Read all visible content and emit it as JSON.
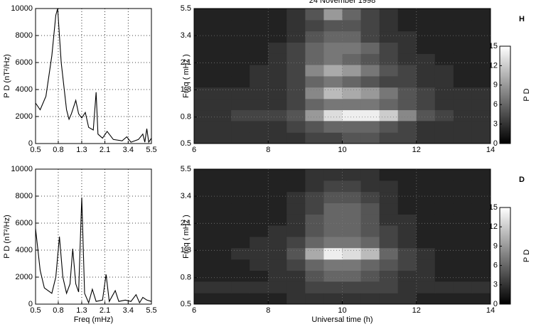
{
  "chart_data": [
    {
      "type": "line",
      "ylabel": "P D (nT²/Hz)",
      "xlog": true,
      "grid": true,
      "color": "#000000",
      "x": [
        0.5,
        0.55,
        0.62,
        0.7,
        0.76,
        0.79,
        0.85,
        0.95,
        1.0,
        1.05,
        1.15,
        1.22,
        1.3,
        1.4,
        1.5,
        1.65,
        1.75,
        1.82,
        2.0,
        2.2,
        2.5,
        3.0,
        3.3,
        3.6,
        4.2,
        4.6,
        4.8,
        5.0,
        5.2,
        5.5
      ],
      "values": [
        3000,
        2500,
        3500,
        6500,
        9500,
        10000,
        6000,
        2500,
        1800,
        2200,
        3200,
        2200,
        1900,
        2300,
        1200,
        1000,
        3800,
        700,
        400,
        900,
        300,
        200,
        500,
        100,
        300,
        700,
        100,
        1100,
        100,
        400
      ],
      "xlim": [
        0.5,
        5.5
      ],
      "xticks": [
        0.5,
        0.8,
        1.3,
        2.1,
        3.4,
        5.5
      ],
      "ylim": [
        0,
        10000
      ],
      "yticks": [
        0,
        2000,
        4000,
        6000,
        8000,
        10000
      ]
    },
    {
      "type": "heatmap",
      "title": "24 November 1998",
      "ylabel": "Freq ( mHz )",
      "panel_label": "H",
      "ylog": true,
      "grid": true,
      "colormap": "gray",
      "xbins": [
        6,
        6.5,
        7,
        7.5,
        8,
        8.5,
        9,
        9.5,
        10,
        10.5,
        11,
        11.5,
        12,
        12.5,
        13,
        13.5,
        14
      ],
      "ybins": [
        0.5,
        0.61,
        0.75,
        0.91,
        1.11,
        1.36,
        1.66,
        2.03,
        2.47,
        3.02,
        3.69,
        4.5,
        5.5
      ],
      "values": [
        [
          3,
          3,
          3,
          3,
          3,
          3,
          4,
          4,
          5,
          5,
          4,
          4,
          3,
          3,
          3,
          3
        ],
        [
          3,
          3,
          3,
          3,
          3,
          4,
          5,
          6,
          6,
          6,
          5,
          4,
          3,
          3,
          3,
          3
        ],
        [
          3,
          3,
          4,
          4,
          4,
          5,
          9,
          13,
          14,
          14,
          12,
          8,
          5,
          4,
          3,
          3
        ],
        [
          3,
          3,
          3,
          3,
          3,
          4,
          6,
          7,
          7,
          7,
          6,
          5,
          4,
          3,
          3,
          3
        ],
        [
          3,
          3,
          3,
          3,
          3,
          4,
          8,
          11,
          10,
          9,
          7,
          5,
          4,
          3,
          3,
          3
        ],
        [
          2,
          2,
          2,
          3,
          3,
          4,
          6,
          7,
          6,
          5,
          4,
          4,
          3,
          3,
          2,
          2
        ],
        [
          2,
          2,
          2,
          3,
          3,
          4,
          8,
          10,
          9,
          7,
          5,
          4,
          3,
          3,
          2,
          2
        ],
        [
          2,
          2,
          2,
          2,
          3,
          4,
          6,
          7,
          6,
          5,
          4,
          3,
          3,
          2,
          2,
          2
        ],
        [
          2,
          2,
          2,
          2,
          3,
          4,
          6,
          7,
          7,
          6,
          4,
          3,
          2,
          2,
          2,
          2
        ],
        [
          2,
          2,
          2,
          2,
          2,
          3,
          5,
          6,
          6,
          4,
          3,
          3,
          2,
          2,
          2,
          2
        ],
        [
          2,
          2,
          2,
          2,
          2,
          3,
          4,
          5,
          5,
          4,
          3,
          2,
          2,
          2,
          2,
          2
        ],
        [
          2,
          2,
          2,
          2,
          2,
          3,
          5,
          9,
          6,
          4,
          3,
          2,
          2,
          2,
          2,
          2
        ]
      ],
      "xlim": [
        6,
        14
      ],
      "xticks": [
        6,
        8,
        10,
        12,
        14
      ],
      "ylim": [
        0.5,
        5.5
      ],
      "yticks": [
        0.5,
        0.8,
        1.3,
        2.1,
        3.4,
        5.5
      ],
      "zlim": [
        0,
        15
      ],
      "colorbar_ticks": [
        0,
        3,
        6,
        9,
        12,
        15
      ],
      "colorbar_label": "P D"
    },
    {
      "type": "line",
      "ylabel": "P D (nT²/Hz)",
      "xlabel": "Freq (mHz)",
      "xlog": true,
      "grid": true,
      "color": "#000000",
      "x": [
        0.5,
        0.55,
        0.6,
        0.7,
        0.76,
        0.82,
        0.88,
        0.95,
        1.02,
        1.08,
        1.15,
        1.22,
        1.3,
        1.38,
        1.5,
        1.62,
        1.75,
        2.0,
        2.15,
        2.3,
        2.6,
        2.8,
        3.2,
        3.6,
        4.0,
        4.3,
        4.6,
        5.0,
        5.5
      ],
      "values": [
        5600,
        2500,
        1200,
        800,
        2000,
        5000,
        2000,
        800,
        1500,
        4100,
        1500,
        900,
        7900,
        800,
        100,
        1100,
        200,
        300,
        2200,
        200,
        1000,
        200,
        300,
        200,
        700,
        100,
        500,
        300,
        200
      ],
      "xlim": [
        0.5,
        5.5
      ],
      "xticks": [
        0.5,
        0.8,
        1.3,
        2.1,
        3.4,
        5.5
      ],
      "ylim": [
        0,
        10000
      ],
      "yticks": [
        0,
        2000,
        4000,
        6000,
        8000,
        10000
      ]
    },
    {
      "type": "heatmap",
      "xlabel": "Universal time (h)",
      "ylabel": "Freq ( mHz )",
      "panel_label": "D",
      "ylog": true,
      "grid": true,
      "colormap": "gray",
      "xbins": [
        6,
        6.5,
        7,
        7.5,
        8,
        8.5,
        9,
        9.5,
        10,
        10.5,
        11,
        11.5,
        12,
        12.5,
        13,
        13.5,
        14
      ],
      "ybins": [
        0.5,
        0.61,
        0.75,
        0.91,
        1.11,
        1.36,
        1.66,
        2.03,
        2.47,
        3.02,
        3.69,
        4.5,
        5.5
      ],
      "values": [
        [
          2,
          2,
          2,
          2,
          2,
          3,
          3,
          3,
          3,
          3,
          3,
          3,
          2,
          2,
          2,
          2
        ],
        [
          3,
          3,
          3,
          3,
          3,
          3,
          4,
          4,
          4,
          4,
          4,
          3,
          3,
          3,
          3,
          3
        ],
        [
          2,
          2,
          2,
          2,
          3,
          3,
          5,
          6,
          6,
          5,
          4,
          3,
          3,
          2,
          2,
          2
        ],
        [
          2,
          2,
          2,
          3,
          3,
          4,
          6,
          7,
          7,
          6,
          5,
          4,
          3,
          2,
          2,
          2
        ],
        [
          2,
          2,
          3,
          3,
          3,
          5,
          10,
          14,
          13,
          11,
          6,
          4,
          3,
          2,
          2,
          2
        ],
        [
          2,
          2,
          2,
          3,
          3,
          4,
          6,
          7,
          7,
          6,
          4,
          3,
          2,
          2,
          2,
          2
        ],
        [
          2,
          2,
          2,
          2,
          3,
          3,
          5,
          6,
          6,
          5,
          4,
          3,
          2,
          2,
          2,
          2
        ],
        [
          2,
          2,
          2,
          2,
          2,
          3,
          5,
          6,
          6,
          5,
          3,
          3,
          2,
          2,
          2,
          2
        ],
        [
          2,
          2,
          2,
          2,
          2,
          3,
          4,
          6,
          6,
          5,
          3,
          2,
          2,
          2,
          2,
          2
        ],
        [
          2,
          2,
          2,
          2,
          2,
          3,
          4,
          5,
          5,
          4,
          3,
          2,
          2,
          2,
          2,
          2
        ],
        [
          2,
          2,
          2,
          2,
          2,
          2,
          3,
          4,
          4,
          3,
          3,
          2,
          2,
          2,
          2,
          2
        ],
        [
          2,
          2,
          2,
          2,
          2,
          2,
          3,
          3,
          3,
          3,
          2,
          2,
          2,
          2,
          2,
          2
        ]
      ],
      "xlim": [
        6,
        14
      ],
      "xticks": [
        6,
        8,
        10,
        12,
        14
      ],
      "ylim": [
        0.5,
        5.5
      ],
      "yticks": [
        0.5,
        0.8,
        1.3,
        2.1,
        3.4,
        5.5
      ],
      "zlim": [
        0,
        15
      ],
      "colorbar_ticks": [
        0,
        3,
        6,
        9,
        12,
        15
      ],
      "colorbar_label": "P D"
    }
  ]
}
